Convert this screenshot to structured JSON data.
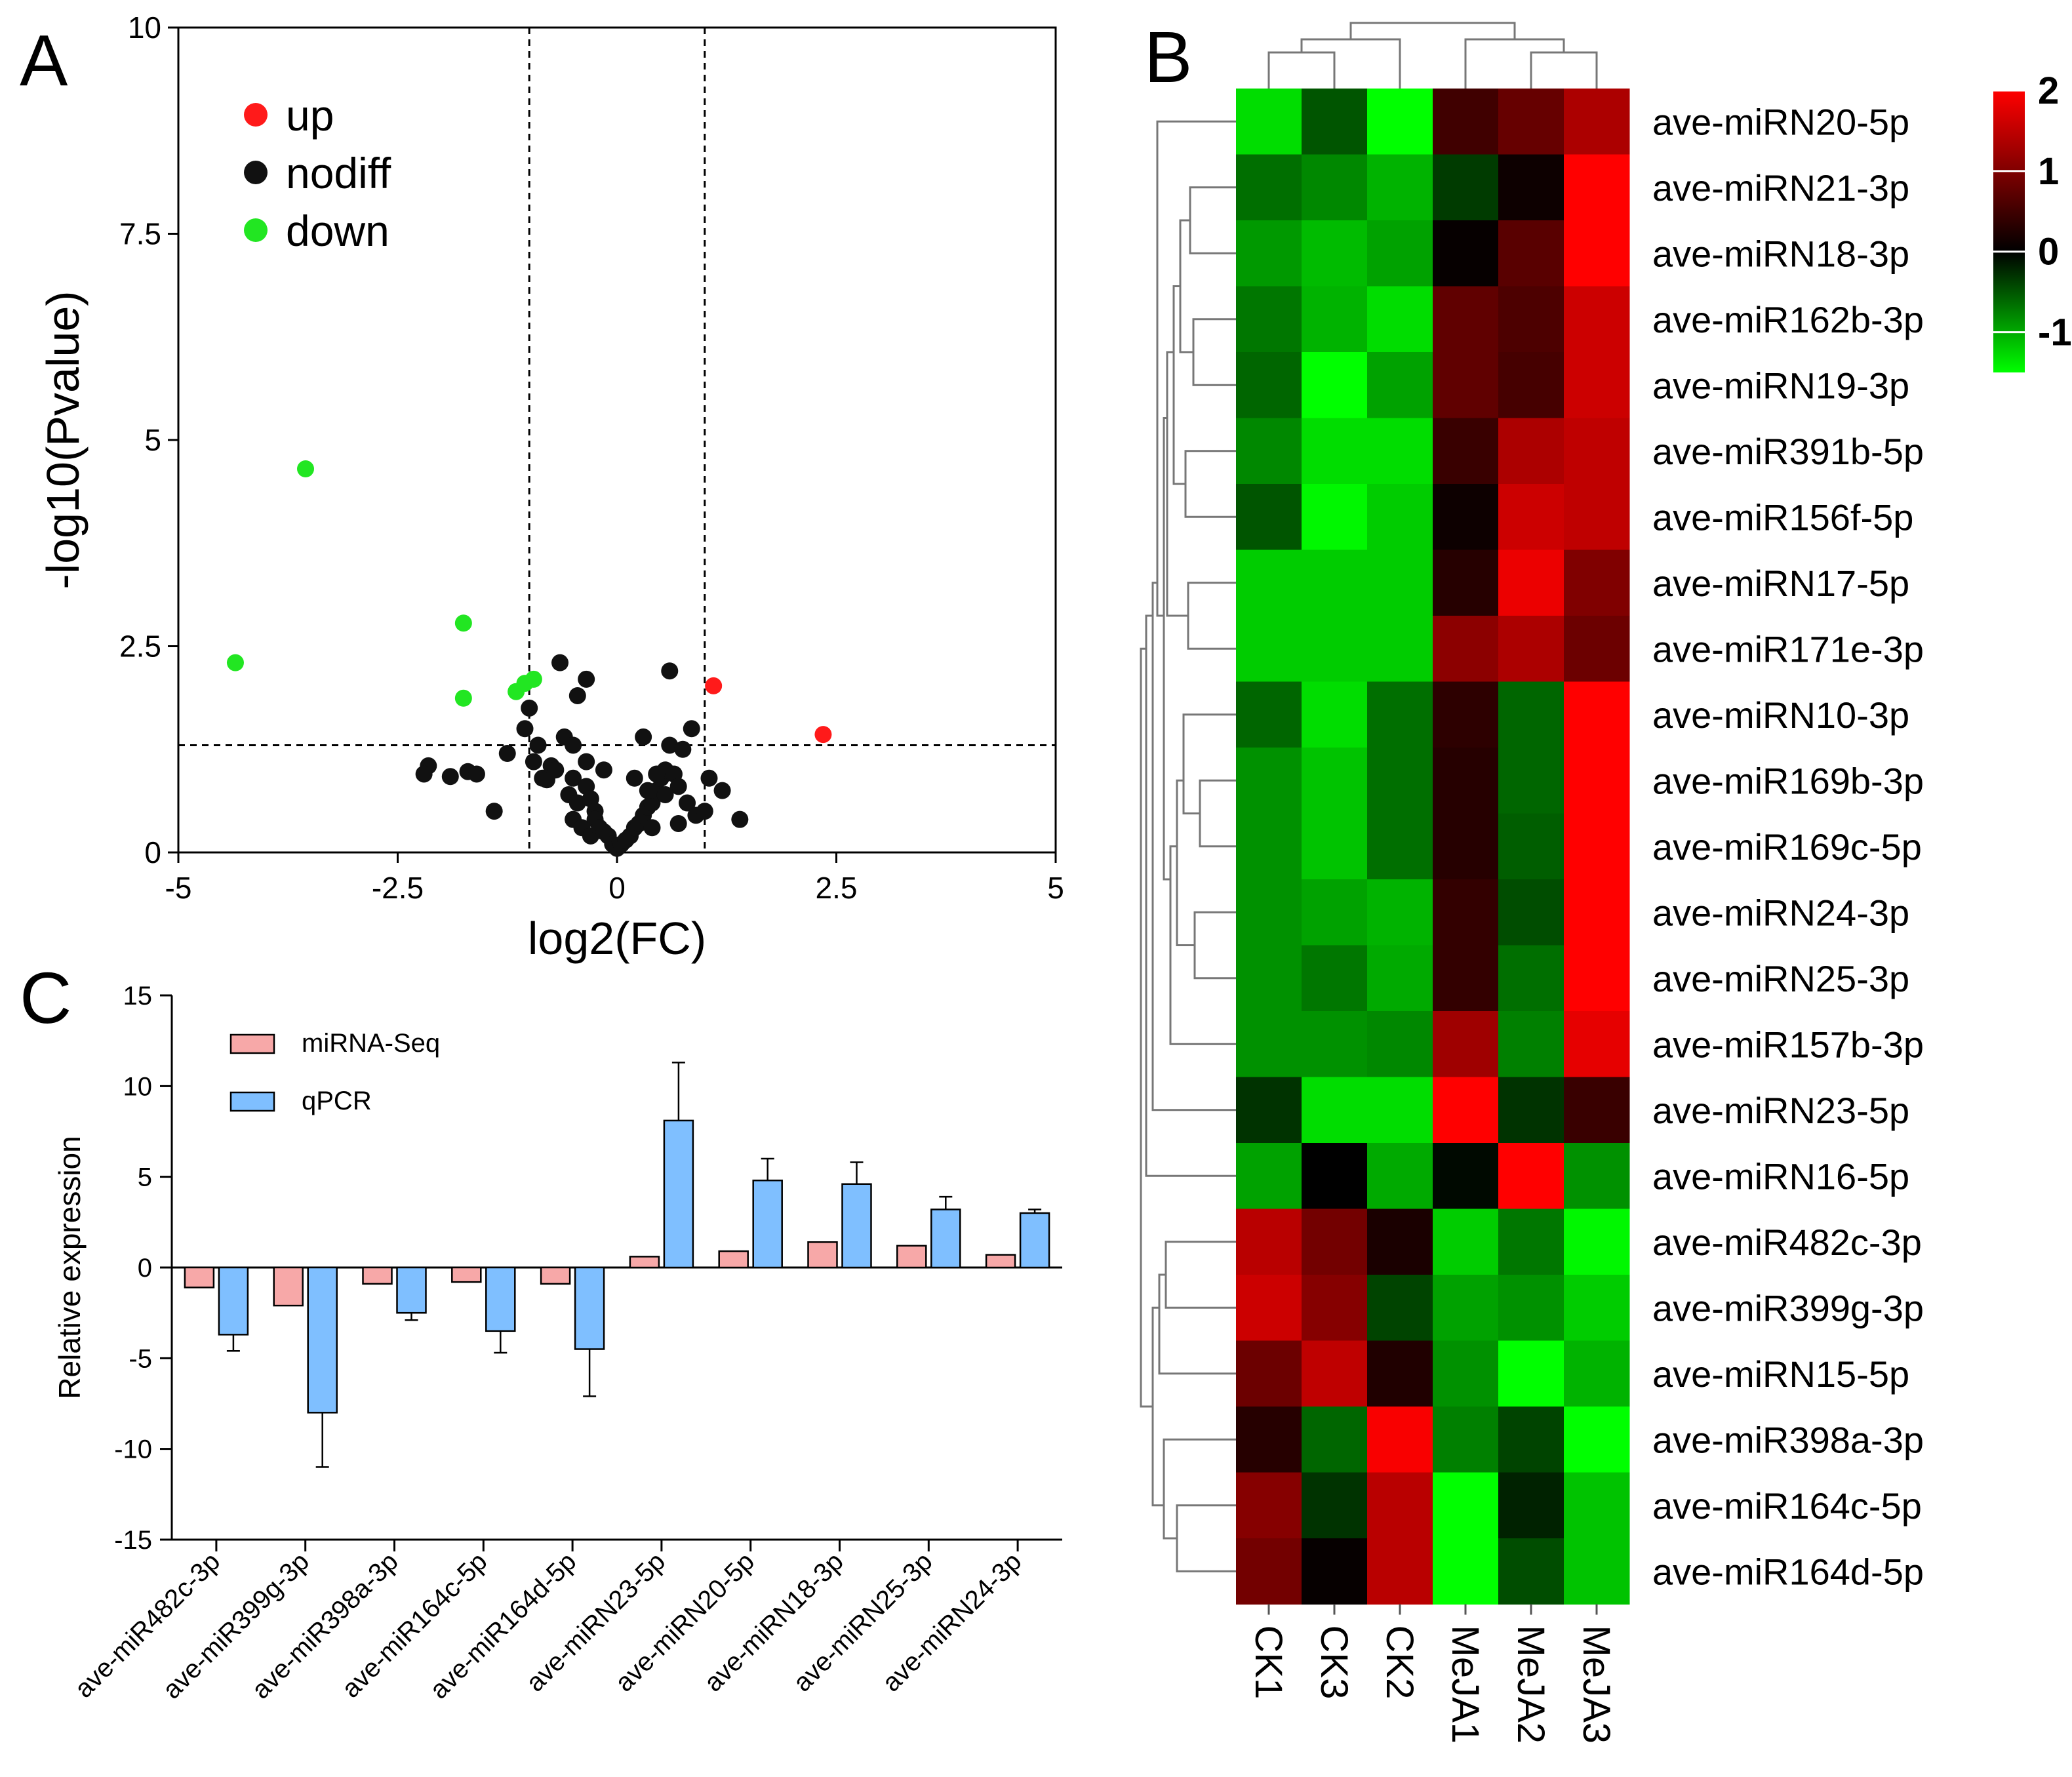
{
  "chart_data": [
    {
      "panel": "A",
      "type": "scatter",
      "title": "",
      "xlabel": "log2(FC)",
      "ylabel": "-log10(Pvalue)",
      "xlim": [
        -5,
        5
      ],
      "ylim": [
        0,
        10
      ],
      "xticks": [
        "-5",
        "-2.5",
        "0",
        "2.5",
        "5"
      ],
      "yticks": [
        "0",
        "2.5",
        "5",
        "7.5",
        "10"
      ],
      "thresholds": {
        "x": [
          -1,
          1
        ],
        "y": 1.3
      },
      "legend_position": "top-left",
      "colors": {
        "up": "#ff1a1a",
        "nodiff": "#111111",
        "down": "#22e622"
      },
      "series": [
        {
          "name": "up",
          "points": [
            [
              1.1,
              2.02
            ],
            [
              2.35,
              1.43
            ]
          ]
        },
        {
          "name": "nodiff",
          "points": [
            [
              -2.15,
              1.05
            ],
            [
              -2.2,
              0.95
            ],
            [
              -1.9,
              0.92
            ],
            [
              -1.7,
              0.98
            ],
            [
              -1.6,
              0.95
            ],
            [
              -1.4,
              0.5
            ],
            [
              -1.25,
              1.2
            ],
            [
              -1.05,
              1.5
            ],
            [
              -1.0,
              1.75
            ],
            [
              -0.95,
              1.1
            ],
            [
              -0.9,
              1.3
            ],
            [
              -0.85,
              0.9
            ],
            [
              -0.8,
              0.88
            ],
            [
              -0.75,
              1.05
            ],
            [
              -0.7,
              1.0
            ],
            [
              -0.65,
              2.3
            ],
            [
              -0.6,
              1.4
            ],
            [
              -0.55,
              0.7
            ],
            [
              -0.5,
              1.3
            ],
            [
              -0.5,
              0.9
            ],
            [
              -0.5,
              0.4
            ],
            [
              -0.45,
              1.9
            ],
            [
              -0.45,
              0.6
            ],
            [
              -0.4,
              0.3
            ],
            [
              -0.35,
              0.8
            ],
            [
              -0.35,
              1.1
            ],
            [
              -0.3,
              0.65
            ],
            [
              -0.3,
              0.2
            ],
            [
              -0.25,
              0.5
            ],
            [
              -0.25,
              0.4
            ],
            [
              -0.2,
              0.3
            ],
            [
              -0.15,
              0.25
            ],
            [
              -0.1,
              0.2
            ],
            [
              -0.05,
              0.1
            ],
            [
              0.0,
              0.05
            ],
            [
              0.05,
              0.1
            ],
            [
              0.1,
              0.15
            ],
            [
              0.15,
              0.2
            ],
            [
              0.2,
              0.3
            ],
            [
              0.25,
              0.35
            ],
            [
              0.3,
              0.45
            ],
            [
              0.35,
              0.55
            ],
            [
              0.4,
              0.6
            ],
            [
              0.45,
              0.75
            ],
            [
              0.5,
              0.9
            ],
            [
              0.55,
              1.0
            ],
            [
              0.6,
              1.3
            ],
            [
              0.65,
              0.95
            ],
            [
              0.7,
              0.8
            ],
            [
              0.75,
              1.25
            ],
            [
              0.8,
              0.6
            ],
            [
              0.85,
              1.5
            ],
            [
              0.9,
              0.45
            ],
            [
              1.0,
              0.5
            ],
            [
              1.05,
              0.9
            ],
            [
              1.2,
              0.75
            ],
            [
              1.4,
              0.4
            ],
            [
              -0.35,
              2.1
            ],
            [
              0.6,
              2.2
            ],
            [
              0.3,
              1.4
            ],
            [
              0.45,
              0.95
            ],
            [
              0.2,
              0.9
            ],
            [
              -0.15,
              1.0
            ],
            [
              0.55,
              0.7
            ],
            [
              0.4,
              0.3
            ],
            [
              0.7,
              0.35
            ],
            [
              0.35,
              0.75
            ]
          ]
        },
        {
          "name": "down",
          "points": [
            [
              -3.55,
              4.65
            ],
            [
              -4.35,
              2.3
            ],
            [
              -1.75,
              2.78
            ],
            [
              -1.75,
              1.87
            ],
            [
              -1.15,
              1.95
            ],
            [
              -1.05,
              2.05
            ],
            [
              -0.95,
              2.1
            ]
          ]
        }
      ]
    },
    {
      "panel": "B",
      "type": "heatmap",
      "title": "",
      "columns": [
        "CK1",
        "CK3",
        "CK2",
        "MeJA1",
        "MeJA2",
        "MeJA3"
      ],
      "rows": [
        "ave-miRN20-5p",
        "ave-miRN21-3p",
        "ave-miRN18-3p",
        "ave-miR162b-3p",
        "ave-miRN19-3p",
        "ave-miR391b-5p",
        "ave-miR156f-5p",
        "ave-miRN17-5p",
        "ave-miR171e-3p",
        "ave-miRN10-3p",
        "ave-miR169b-3p",
        "ave-miR169c-5p",
        "ave-miRN24-3p",
        "ave-miRN25-3p",
        "ave-miR157b-3p",
        "ave-miRN23-5p",
        "ave-miRN16-5p",
        "ave-miR482c-3p",
        "ave-miR399g-3p",
        "ave-miRN15-5p",
        "ave-miR398a-3p",
        "ave-miR164c-5p",
        "ave-miR164d-5p"
      ],
      "values": [
        [
          -1.3,
          -0.5,
          -1.75,
          0.5,
          0.8,
          1.35
        ],
        [
          -0.65,
          -0.8,
          -1.05,
          -0.35,
          0.1,
          2.0
        ],
        [
          -0.9,
          -1.1,
          -0.95,
          0.05,
          0.7,
          2.0
        ],
        [
          -0.7,
          -1.05,
          -1.3,
          0.75,
          0.6,
          1.6
        ],
        [
          -0.6,
          -1.75,
          -0.95,
          0.75,
          0.55,
          1.6
        ],
        [
          -0.8,
          -1.3,
          -1.3,
          0.45,
          1.35,
          1.5
        ],
        [
          -0.5,
          -1.45,
          -1.2,
          0.1,
          1.6,
          1.5
        ],
        [
          -1.2,
          -1.2,
          -1.2,
          0.3,
          1.85,
          1.0
        ],
        [
          -1.2,
          -1.2,
          -1.2,
          1.1,
          1.35,
          0.85
        ],
        [
          -0.6,
          -1.3,
          -0.65,
          0.35,
          -0.6,
          2.0
        ],
        [
          -0.85,
          -1.15,
          -0.65,
          0.3,
          -0.6,
          2.0
        ],
        [
          -0.85,
          -1.15,
          -0.65,
          0.3,
          -0.55,
          2.0
        ],
        [
          -0.85,
          -0.95,
          -1.05,
          0.4,
          -0.45,
          2.0
        ],
        [
          -0.85,
          -0.7,
          -1.0,
          0.4,
          -0.65,
          2.0
        ],
        [
          -0.85,
          -0.85,
          -0.8,
          1.25,
          -0.75,
          1.8
        ],
        [
          -0.3,
          -1.3,
          -1.3,
          2.0,
          -0.3,
          0.45
        ],
        [
          -0.95,
          0.0,
          -1.0,
          -0.05,
          2.0,
          -0.85
        ],
        [
          1.45,
          0.9,
          0.2,
          -1.2,
          -0.7,
          -1.45
        ],
        [
          1.6,
          1.05,
          -0.4,
          -0.95,
          -0.85,
          -1.2
        ],
        [
          0.85,
          1.5,
          0.25,
          -0.85,
          -1.5,
          -1.05
        ],
        [
          0.3,
          -0.6,
          1.95,
          -0.75,
          -0.4,
          -1.5
        ],
        [
          1.05,
          -0.3,
          1.45,
          -1.85,
          -0.2,
          -1.15
        ],
        [
          0.9,
          0.05,
          1.45,
          -1.85,
          -0.45,
          -1.15
        ]
      ],
      "colorbar": {
        "range": [
          -1.5,
          2
        ],
        "ticks": [
          "2",
          "1",
          "0",
          "-1"
        ],
        "low": "#00ff00",
        "mid": "#000000",
        "high": "#ff0000"
      }
    },
    {
      "panel": "C",
      "type": "bar",
      "title": "",
      "xlabel": "",
      "ylabel": "Relative expression",
      "ylim": [
        -15,
        15
      ],
      "yticks": [
        "15",
        "10",
        "5",
        "0",
        "-5",
        "-10",
        "-15"
      ],
      "categories": [
        "ave-miR482c-3p",
        "ave-miR399g-3p",
        "ave-miR398a-3p",
        "ave-miR164c-5p",
        "ave-miR164d-5p",
        "ave-miRN23-5p",
        "ave-miRN20-5p",
        "ave-miRN18-3p",
        "ave-miRN25-3p",
        "ave-miRN24-3p"
      ],
      "series": [
        {
          "name": "miRNA-Seq",
          "color": "#f7a8a8",
          "values": [
            -1.1,
            -2.1,
            -0.9,
            -0.8,
            -0.9,
            0.6,
            0.9,
            1.4,
            1.2,
            0.7
          ]
        },
        {
          "name": "qPCR",
          "color": "#7fbfff",
          "values": [
            -3.7,
            -8.0,
            -2.5,
            -3.5,
            -4.5,
            8.1,
            4.8,
            4.6,
            3.2,
            3.0
          ],
          "errors": [
            0.9,
            3.0,
            0.4,
            1.2,
            2.6,
            3.2,
            1.2,
            1.2,
            0.7,
            0.2
          ]
        }
      ],
      "legend_position": "top-left"
    }
  ],
  "labels": {
    "panel_a": "A",
    "panel_b": "B",
    "panel_c": "C"
  }
}
